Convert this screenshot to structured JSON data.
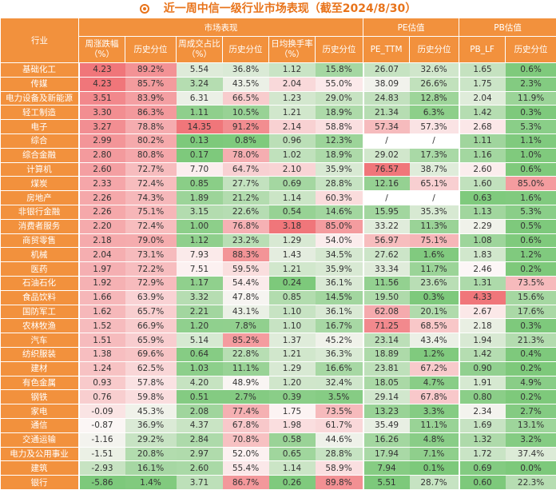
{
  "title": "近一周中信一级行业市场表现（截至2024/8/30）",
  "headers": {
    "industry": "行业",
    "market": "市场表现",
    "pe": "PE估值",
    "pb": "PB估值",
    "weekly_change": "周涨跌幅（%）",
    "hist_pct": "历史分位",
    "turnover_share": "周成交占比（%）",
    "daily_turnover": "日均换手率（%）",
    "pe_ttm": "PE_TTM",
    "pb_lf": "PB_LF"
  },
  "colors": {
    "header_orange": "#f2913d",
    "title_orange": "#e8731a",
    "red_scale": "#f0767a",
    "green_scale": "#7dc97b"
  },
  "rows": [
    [
      "基础化工",
      "4.23",
      "89.2%",
      "5.54",
      "36.8%",
      "1.12",
      "15.8%",
      "26.07",
      "32.6%",
      "1.65",
      "0.6%"
    ],
    [
      "传媒",
      "4.23",
      "85.7%",
      "3.24",
      "43.5%",
      "2.04",
      "55.0%",
      "38.09",
      "26.6%",
      "1.75",
      "2.3%"
    ],
    [
      "电力设备及新能源",
      "3.51",
      "83.9%",
      "6.31",
      "66.5%",
      "1.23",
      "29.0%",
      "24.83",
      "12.8%",
      "2.04",
      "11.9%"
    ],
    [
      "轻工制造",
      "3.30",
      "86.3%",
      "1.11",
      "10.5%",
      "1.21",
      "18.9%",
      "21.34",
      "6.3%",
      "1.42",
      "0.3%"
    ],
    [
      "电子",
      "3.27",
      "78.8%",
      "14.35",
      "91.2%",
      "2.14",
      "58.8%",
      "57.34",
      "57.3%",
      "2.68",
      "5.3%"
    ],
    [
      "综合",
      "2.99",
      "80.2%",
      "0.13",
      "0.8%",
      "0.96",
      "12.3%",
      "/",
      "/",
      "1.11",
      "1.1%"
    ],
    [
      "综合金融",
      "2.80",
      "80.8%",
      "0.17",
      "78.0%",
      "1.02",
      "18.9%",
      "29.02",
      "17.3%",
      "1.16",
      "1.0%"
    ],
    [
      "计算机",
      "2.60",
      "72.7%",
      "7.70",
      "64.7%",
      "2.10",
      "35.9%",
      "76.57",
      "38.7%",
      "2.60",
      "0.6%"
    ],
    [
      "煤炭",
      "2.33",
      "72.4%",
      "0.85",
      "27.7%",
      "0.69",
      "28.8%",
      "12.16",
      "65.1%",
      "1.60",
      "85.0%"
    ],
    [
      "房地产",
      "2.26",
      "74.3%",
      "1.89",
      "21.2%",
      "1.14",
      "60.3%",
      "/",
      "/",
      "0.63",
      "1.6%"
    ],
    [
      "非银行金融",
      "2.26",
      "75.1%",
      "3.15",
      "22.6%",
      "0.54",
      "14.6%",
      "15.95",
      "35.3%",
      "1.13",
      "5.3%"
    ],
    [
      "消费者服务",
      "2.20",
      "72.4%",
      "1.00",
      "76.8%",
      "3.18",
      "85.0%",
      "33.22",
      "11.3%",
      "2.29",
      "0.5%"
    ],
    [
      "商贸零售",
      "2.18",
      "79.0%",
      "1.12",
      "23.2%",
      "1.29",
      "54.0%",
      "56.97",
      "75.1%",
      "1.08",
      "0.6%"
    ],
    [
      "机械",
      "2.04",
      "73.1%",
      "7.93",
      "88.3%",
      "1.43",
      "34.5%",
      "27.62",
      "1.6%",
      "1.83",
      "1.2%"
    ],
    [
      "医药",
      "1.97",
      "72.2%",
      "7.51",
      "59.5%",
      "1.21",
      "35.9%",
      "33.34",
      "11.7%",
      "2.46",
      "0.2%"
    ],
    [
      "石油石化",
      "1.92",
      "72.9%",
      "1.17",
      "54.4%",
      "0.24",
      "36.1%",
      "11.56",
      "23.6%",
      "1.31",
      "73.5%"
    ],
    [
      "食品饮料",
      "1.66",
      "63.9%",
      "3.32",
      "47.8%",
      "0.85",
      "14.5%",
      "19.50",
      "0.3%",
      "4.33",
      "15.6%"
    ],
    [
      "国防军工",
      "1.62",
      "65.7%",
      "2.21",
      "43.1%",
      "1.10",
      "36.1%",
      "62.08",
      "20.1%",
      "2.67",
      "17.6%"
    ],
    [
      "农林牧渔",
      "1.52",
      "66.9%",
      "1.20",
      "7.8%",
      "1.10",
      "16.7%",
      "71.25",
      "68.5%",
      "2.18",
      "0.3%"
    ],
    [
      "汽车",
      "1.51",
      "65.9%",
      "5.14",
      "85.2%",
      "1.37",
      "45.2%",
      "23.14",
      "43.4%",
      "1.94",
      "21.3%"
    ],
    [
      "纺织服装",
      "1.38",
      "69.6%",
      "0.64",
      "22.8%",
      "1.21",
      "36.3%",
      "18.89",
      "1.2%",
      "1.42",
      "0.4%"
    ],
    [
      "建材",
      "1.24",
      "62.5%",
      "1.03",
      "11.1%",
      "1.29",
      "16.6%",
      "23.81",
      "67.2%",
      "0.90",
      "0.2%"
    ],
    [
      "有色金属",
      "0.93",
      "57.8%",
      "4.20",
      "48.9%",
      "1.20",
      "32.4%",
      "18.05",
      "4.7%",
      "1.91",
      "4.9%"
    ],
    [
      "钢铁",
      "0.76",
      "59.8%",
      "0.51",
      "2.7%",
      "0.39",
      "3.5%",
      "29.14",
      "67.8%",
      "0.80",
      "0.2%"
    ],
    [
      "家电",
      "-0.09",
      "45.3%",
      "2.08",
      "77.4%",
      "1.75",
      "73.5%",
      "13.23",
      "3.3%",
      "2.34",
      "2.7%"
    ],
    [
      "通信",
      "-0.87",
      "36.9%",
      "4.37",
      "67.8%",
      "1.98",
      "61.7%",
      "35.49",
      "11.1%",
      "1.69",
      "13.1%"
    ],
    [
      "交通运输",
      "-1.16",
      "29.2%",
      "2.84",
      "70.8%",
      "0.58",
      "44.6%",
      "16.26",
      "4.8%",
      "1.32",
      "3.2%"
    ],
    [
      "电力及公用事业",
      "-1.51",
      "20.8%",
      "2.97",
      "52.0%",
      "0.65",
      "28.8%",
      "17.94",
      "7.1%",
      "1.72",
      "37.4%"
    ],
    [
      "建筑",
      "-2.93",
      "16.1%",
      "2.60",
      "55.4%",
      "1.14",
      "58.9%",
      "7.94",
      "0.1%",
      "0.69",
      "0.0%"
    ],
    [
      "银行",
      "-5.86",
      "1.4%",
      "3.71",
      "86.7%",
      "0.26",
      "89.8%",
      "5.51",
      "28.7%",
      "0.60",
      "22.3%"
    ]
  ]
}
